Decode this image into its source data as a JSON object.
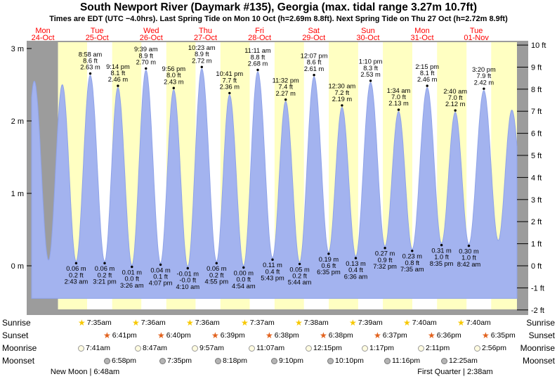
{
  "header": {
    "title": "South Newport River (Daymark #135), Georgia (max. tidal range 3.27m 10.7ft)",
    "subtitle": "Times are EDT (UTC −4.0hrs). Last Spring Tide on Mon 10 Oct (h=2.69m 8.8ft). Next Spring Tide on Thu 27 Oct (h=2.72m 8.9ft)"
  },
  "colors": {
    "day_label": "#ff0000",
    "chart_bg": "#9c9c9c",
    "night_band": "#ffffc2",
    "day_band": "#ffffff",
    "tide_fill": "#a3b3ef",
    "tide_stroke": "#8fa3e8",
    "annotation": "#000000",
    "sunrise_star": "#f7c800",
    "sunset_star": "#e2611c",
    "moonrise_fill": "#fffbe0",
    "moonset_fill": "#b4b4b4"
  },
  "chart_data": {
    "type": "area",
    "title": "South Newport River (Daymark #135), Georgia tide curve",
    "ylabel": "tide height",
    "grid": false,
    "y_axis_left": {
      "unit": "m",
      "ticks": [
        {
          "v": 0,
          "label": "0 m"
        },
        {
          "v": 1,
          "label": "1 m"
        },
        {
          "v": 2,
          "label": "2 m"
        },
        {
          "v": 3,
          "label": "3 m"
        }
      ]
    },
    "y_axis_right": {
      "unit": "ft",
      "ticks": [
        {
          "v": -2,
          "label": "-2 ft"
        },
        {
          "v": -1,
          "label": "-1 ft"
        },
        {
          "v": 0,
          "label": "0 ft"
        },
        {
          "v": 1,
          "label": "1 ft"
        },
        {
          "v": 2,
          "label": "2 ft"
        },
        {
          "v": 3,
          "label": "3 ft"
        },
        {
          "v": 4,
          "label": "4 ft"
        },
        {
          "v": 5,
          "label": "5 ft"
        },
        {
          "v": 6,
          "label": "6 ft"
        },
        {
          "v": 7,
          "label": "7 ft"
        },
        {
          "v": 8,
          "label": "8 ft"
        },
        {
          "v": 9,
          "label": "9 ft"
        },
        {
          "v": 10,
          "label": "10 ft"
        }
      ]
    },
    "days": [
      {
        "dow": "Mon",
        "date": "24-Oct"
      },
      {
        "dow": "Tue",
        "date": "25-Oct"
      },
      {
        "dow": "Wed",
        "date": "26-Oct"
      },
      {
        "dow": "Thu",
        "date": "27-Oct"
      },
      {
        "dow": "Fri",
        "date": "28-Oct"
      },
      {
        "dow": "Sat",
        "date": "29-Oct"
      },
      {
        "dow": "Sun",
        "date": "30-Oct"
      },
      {
        "dow": "Mon",
        "date": "31-Oct"
      },
      {
        "dow": "Tue",
        "date": "01-Nov"
      }
    ],
    "tides": [
      {
        "d": 0,
        "type": "L",
        "h": 0.1,
        "t_est": 2.0,
        "ann": false
      },
      {
        "d": 0,
        "type": "H",
        "h": 2.55,
        "t_est": 8.2,
        "ann": false
      },
      {
        "d": 0,
        "type": "L",
        "h": 0.08,
        "t_est": 14.5,
        "ann": false
      },
      {
        "d": 0,
        "type": "H",
        "h": 2.5,
        "t_est": 20.6,
        "ann": false
      },
      {
        "d": 1,
        "type": "L",
        "h": 0.06,
        "time": "2:43 am",
        "m": "0.06 m",
        "ft": "0.2 ft",
        "ann": true
      },
      {
        "d": 1,
        "type": "H",
        "h": 2.63,
        "time": "8:58 am",
        "ft": "8.6 ft",
        "m": "2.63 m",
        "ann": true
      },
      {
        "d": 1,
        "type": "L",
        "h": 0.06,
        "time": "3:21 pm",
        "m": "0.06 m",
        "ft": "0.2 ft",
        "ann": true
      },
      {
        "d": 1,
        "type": "H",
        "h": 2.46,
        "time": "9:14 pm",
        "ft": "8.1 ft",
        "m": "2.46 m",
        "ann": true
      },
      {
        "d": 2,
        "type": "L",
        "h": 0.01,
        "time": "3:26 am",
        "m": "0.01 m",
        "ft": "0.0 ft",
        "ann": true
      },
      {
        "d": 2,
        "type": "H",
        "h": 2.7,
        "time": "9:39 am",
        "ft": "8.9 ft",
        "m": "2.70 m",
        "ann": true
      },
      {
        "d": 2,
        "type": "L",
        "h": 0.04,
        "time": "4:07 pm",
        "m": "0.04 m",
        "ft": "0.1 ft",
        "ann": true
      },
      {
        "d": 2,
        "type": "H",
        "h": 2.43,
        "time": "9:56 pm",
        "ft": "8.0 ft",
        "m": "2.43 m",
        "ann": true
      },
      {
        "d": 3,
        "type": "L",
        "h": -0.01,
        "time": "4:10 am",
        "m": "-0.01 m",
        "ft": "-0.0 ft",
        "ann": true
      },
      {
        "d": 3,
        "type": "H",
        "h": 2.72,
        "time": "10:23 am",
        "ft": "8.9 ft",
        "m": "2.72 m",
        "ann": true
      },
      {
        "d": 3,
        "type": "L",
        "h": 0.06,
        "time": "4:55 pm",
        "m": "0.06 m",
        "ft": "0.2 ft",
        "ann": true
      },
      {
        "d": 3,
        "type": "H",
        "h": 2.36,
        "time": "10:41 pm",
        "ft": "7.7 ft",
        "m": "2.36 m",
        "ann": true
      },
      {
        "d": 4,
        "type": "L",
        "h": 0.0,
        "time": "4:54 am",
        "m": "0.00 m",
        "ft": "0.0 ft",
        "ann": true
      },
      {
        "d": 4,
        "type": "H",
        "h": 2.68,
        "time": "11:11 am",
        "ft": "8.8 ft",
        "m": "2.68 m",
        "ann": true
      },
      {
        "d": 4,
        "type": "L",
        "h": 0.11,
        "time": "5:43 pm",
        "m": "0.11 m",
        "ft": "0.4 ft",
        "ann": true
      },
      {
        "d": 4,
        "type": "H",
        "h": 2.27,
        "time": "11:32 pm",
        "ft": "7.4 ft",
        "m": "2.27 m",
        "ann": true
      },
      {
        "d": 5,
        "type": "L",
        "h": 0.05,
        "time": "5:44 am",
        "m": "0.05 m",
        "ft": "0.2 ft",
        "ann": true
      },
      {
        "d": 5,
        "type": "H",
        "h": 2.61,
        "time": "12:07 pm",
        "ft": "8.6 ft",
        "m": "2.61 m",
        "ann": true
      },
      {
        "d": 5,
        "type": "L",
        "h": 0.19,
        "time": "6:35 pm",
        "m": "0.19 m",
        "ft": "0.6 ft",
        "ann": true
      },
      {
        "d": 6,
        "type": "H",
        "h": 2.19,
        "time": "12:30 am",
        "ft": "7.2 ft",
        "m": "2.19 m",
        "ann": true
      },
      {
        "d": 6,
        "type": "L",
        "h": 0.13,
        "time": "6:36 am",
        "m": "0.13 m",
        "ft": "0.4 ft",
        "ann": true
      },
      {
        "d": 6,
        "type": "H",
        "h": 2.53,
        "time": "1:10 pm",
        "ft": "8.3 ft",
        "m": "2.53 m",
        "ann": true
      },
      {
        "d": 6,
        "type": "L",
        "h": 0.27,
        "time": "7:32 pm",
        "m": "0.27 m",
        "ft": "0.9 ft",
        "ann": true
      },
      {
        "d": 7,
        "type": "H",
        "h": 2.13,
        "time": "1:34 am",
        "ft": "7.0 ft",
        "m": "2.13 m",
        "ann": true
      },
      {
        "d": 7,
        "type": "L",
        "h": 0.23,
        "time": "7:35 am",
        "m": "0.23 m",
        "ft": "0.8 ft",
        "ann": true
      },
      {
        "d": 7,
        "type": "H",
        "h": 2.46,
        "time": "2:15 pm",
        "ft": "8.1 ft",
        "m": "2.46 m",
        "ann": true
      },
      {
        "d": 7,
        "type": "L",
        "h": 0.31,
        "time": "8:35 pm",
        "m": "0.31 m",
        "ft": "1.0 ft",
        "ann": true
      },
      {
        "d": 8,
        "type": "H",
        "h": 2.12,
        "time": "2:40 am",
        "ft": "7.0 ft",
        "m": "2.12 m",
        "ann": true
      },
      {
        "d": 8,
        "type": "L",
        "h": 0.3,
        "time": "8:42 am",
        "m": "0.30 m",
        "ft": "1.0 ft",
        "ann": true
      },
      {
        "d": 8,
        "type": "H",
        "h": 2.42,
        "time": "3:20 pm",
        "ft": "7.9 ft",
        "m": "2.42 m",
        "ann": true
      },
      {
        "d": 8,
        "type": "L",
        "h": 0.35,
        "t_est": 21.7,
        "ann": false
      },
      {
        "d": 9,
        "type": "H",
        "h": 2.15,
        "t_est": 3.75,
        "ann": false
      },
      {
        "d": 9,
        "type": "L",
        "h": 0.4,
        "t_est": 10.0,
        "ann": false
      }
    ],
    "layout": {
      "t_start": 7,
      "t_end": 222,
      "first_night_start": 18.7,
      "fill_to_m": -0.45,
      "y_range_m": [
        -0.61,
        3.1
      ]
    }
  },
  "astro": {
    "rows": [
      {
        "kind": "sunrise",
        "label": "Sunrise",
        "events": [
          {
            "d": 1,
            "time": "7:35am"
          },
          {
            "d": 2,
            "time": "7:36am"
          },
          {
            "d": 3,
            "time": "7:36am"
          },
          {
            "d": 4,
            "time": "7:37am"
          },
          {
            "d": 5,
            "time": "7:38am"
          },
          {
            "d": 6,
            "time": "7:39am"
          },
          {
            "d": 7,
            "time": "7:40am"
          },
          {
            "d": 8,
            "time": "7:40am"
          }
        ]
      },
      {
        "kind": "sunset",
        "label": "Sunset",
        "events": [
          {
            "d": 1,
            "time": "6:41pm"
          },
          {
            "d": 2,
            "time": "6:40pm"
          },
          {
            "d": 3,
            "time": "6:39pm"
          },
          {
            "d": 4,
            "time": "6:38pm"
          },
          {
            "d": 5,
            "time": "6:38pm"
          },
          {
            "d": 6,
            "time": "6:37pm"
          },
          {
            "d": 7,
            "time": "6:36pm"
          },
          {
            "d": 8,
            "time": "6:35pm"
          }
        ]
      },
      {
        "kind": "moonrise",
        "label": "Moonrise",
        "events": [
          {
            "d": 1,
            "time": "7:41am"
          },
          {
            "d": 2,
            "time": "8:47am"
          },
          {
            "d": 3,
            "time": "9:57am"
          },
          {
            "d": 4,
            "time": "11:07am"
          },
          {
            "d": 5,
            "time": "12:15pm"
          },
          {
            "d": 6,
            "time": "1:17pm"
          },
          {
            "d": 7,
            "time": "2:11pm"
          },
          {
            "d": 8,
            "time": "2:56pm"
          }
        ]
      },
      {
        "kind": "moonset",
        "label": "Moonset",
        "events": [
          {
            "d": 1,
            "time": "6:58pm"
          },
          {
            "d": 2,
            "time": "7:35pm"
          },
          {
            "d": 3,
            "time": "8:18pm"
          },
          {
            "d": 4,
            "time": "9:10pm"
          },
          {
            "d": 5,
            "time": "10:10pm"
          },
          {
            "d": 6,
            "time": "11:16pm"
          },
          {
            "d": 8,
            "time": "12:25am"
          }
        ]
      }
    ],
    "moon_phases": [
      {
        "label": "New Moon",
        "time": "6:48am",
        "d": 1
      },
      {
        "label": "First Quarter",
        "time": "2:38am",
        "d": 8
      }
    ]
  }
}
